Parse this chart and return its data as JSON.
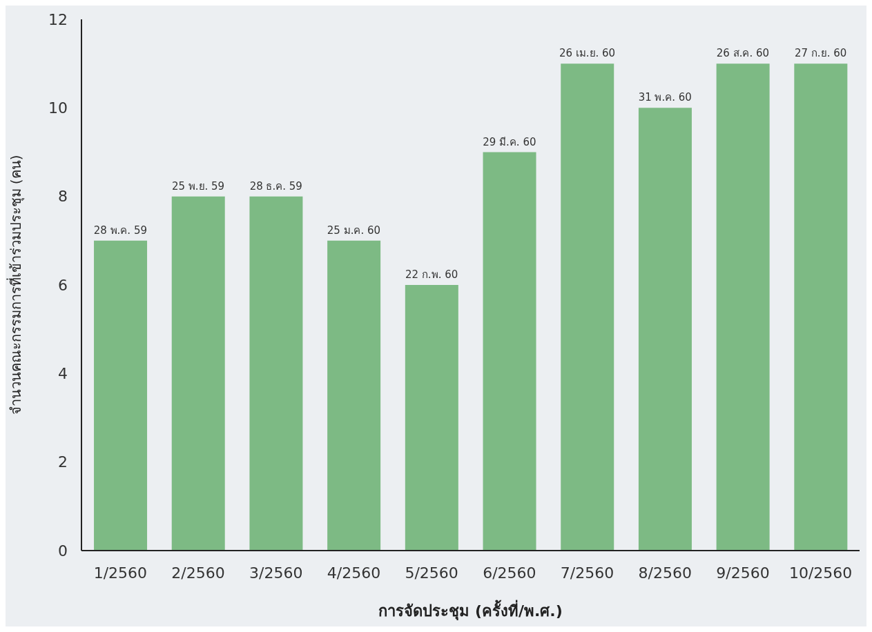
{
  "chart_data": {
    "type": "bar",
    "xlabel": "การจัดประชุม (ครั้งที่/พ.ศ.)",
    "ylabel": "จำนวนคณะกรรมการที่เข้าร่วมประชุม (คน)",
    "categories": [
      "1/2560",
      "2/2560",
      "3/2560",
      "4/2560",
      "5/2560",
      "6/2560",
      "7/2560",
      "8/2560",
      "9/2560",
      "10/2560"
    ],
    "values": [
      7,
      8,
      8,
      7,
      6,
      9,
      11,
      10,
      11,
      11
    ],
    "annotations": [
      {
        "text": "28 พ.ค. 59",
        "x": "1/2560",
        "y": 7
      },
      {
        "text": "25 พ.ย. 59",
        "x": "2/2560",
        "y": 8
      },
      {
        "text": "28 ธ.ค. 59",
        "x": "3/2560",
        "y": 8
      },
      {
        "text": "25 ม.ค. 60",
        "x": "4/2560",
        "y": 7
      },
      {
        "text": "22 ก.พ. 60",
        "x": "5/2560",
        "y": 6
      },
      {
        "text": "29 มี.ค. 60",
        "x": "6/2560",
        "y": 9
      },
      {
        "text": "26 เม.ย. 60",
        "x": "7/2560",
        "y": 11
      },
      {
        "text": "31 พ.ค. 60",
        "x": "8/2560",
        "y": 10
      },
      {
        "text": "26 ส.ค. 60",
        "x": "9/2560",
        "y": 11
      },
      {
        "text": "27 ก.ย. 60",
        "x": "10/2560",
        "y": 11
      }
    ],
    "color": "#7dba84",
    "ylim": [
      0,
      12
    ],
    "yticks": [
      0,
      2,
      4,
      6,
      8,
      10,
      12
    ],
    "grid": false,
    "legend": false
  }
}
